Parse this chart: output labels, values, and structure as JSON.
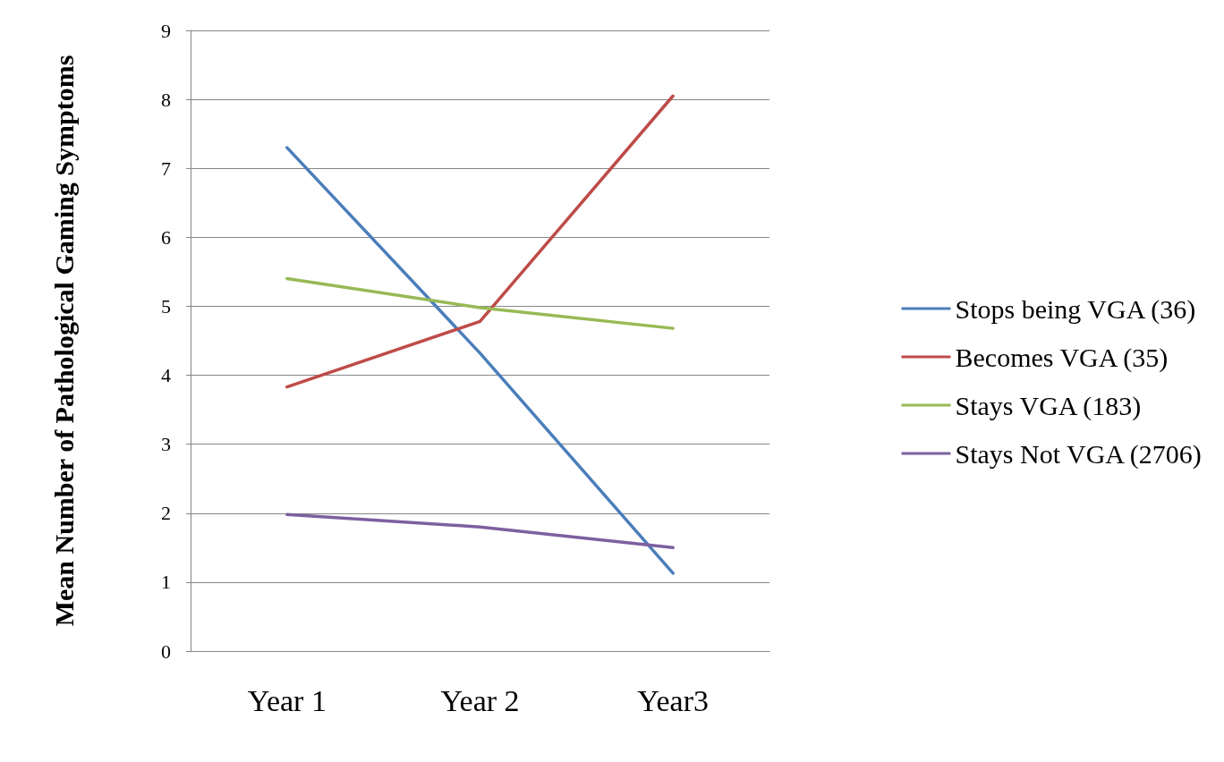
{
  "chart_data": {
    "type": "line",
    "ylabel": "Mean Number of Pathological Gaming Symptoms",
    "categories": [
      "Year 1",
      "Year 2",
      "Year3"
    ],
    "series": [
      {
        "name": "Stops being VGA (36)",
        "color": "#4a7ebb",
        "values": [
          7.3,
          4.32,
          1.13
        ]
      },
      {
        "name": "Becomes VGA (35)",
        "color": "#be4b48",
        "values": [
          3.83,
          4.78,
          8.05
        ]
      },
      {
        "name": "Stays VGA (183)",
        "color": "#98b954",
        "values": [
          5.4,
          4.98,
          4.68
        ]
      },
      {
        "name": "Stays Not VGA (2706)",
        "color": "#7d60a0",
        "values": [
          1.98,
          1.8,
          1.5
        ]
      }
    ],
    "ylim": [
      0,
      9
    ],
    "yticks": [
      0,
      1,
      2,
      3,
      4,
      5,
      6,
      7,
      8,
      9
    ],
    "grid": "y",
    "legend": "right",
    "marker": "none",
    "line_style": "solid"
  }
}
